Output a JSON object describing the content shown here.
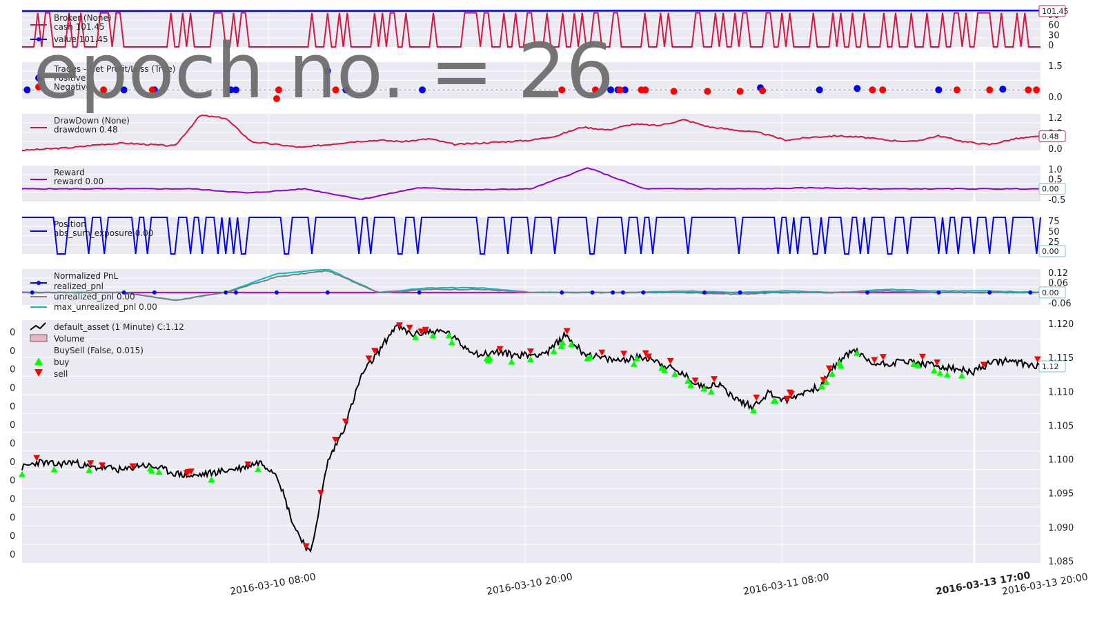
{
  "epoch_label": "epoch no. = 26",
  "colors": {
    "panel_bg": "#eaeaf2",
    "grid": "#ffffff",
    "cash": "#dc143c",
    "value": "#0000ff",
    "trade_positive": "#0000ff",
    "trade_negative": "#ff0000",
    "drawdown": "#dc143c",
    "reward": "#9400d3",
    "position": "#0000ff",
    "realized": "#0000ff",
    "unrealized": "#808080",
    "max_unrealized": "#00bfbf",
    "price": "#000000",
    "buy": "#00ff00",
    "sell": "#ff0000"
  },
  "x_axis": {
    "ticks": [
      "2016-03-10 08:00",
      "2016-03-10 20:00",
      "2016-03-11 08:00",
      "2016-03-13 17:00",
      "2016-03-13 20:00"
    ]
  },
  "chart_data": [
    {
      "type": "line",
      "id": "broker",
      "legend": [
        "Broker (None)",
        "cash 101.45",
        "value 101.45"
      ],
      "yticks": [
        "90",
        "60",
        "30",
        "0"
      ],
      "ylim": [
        0,
        100
      ],
      "last_value": "101.45",
      "series": [
        {
          "name": "cash",
          "values": [
            0,
            100,
            0,
            100,
            0,
            100,
            0,
            100,
            0,
            100,
            0
          ]
        },
        {
          "name": "value",
          "values": [
            100,
            100,
            100,
            100,
            101.45
          ]
        }
      ]
    },
    {
      "type": "scatter",
      "id": "trades",
      "legend": [
        "Trades - Net Profit/Loss (True)",
        "Positive",
        "Negative"
      ],
      "yticks": [
        "1.5",
        "0.0"
      ],
      "ylim": [
        -0.6,
        1.9
      ],
      "positive": [
        [
          0.005,
          0
        ],
        [
          0.1,
          0
        ],
        [
          0.13,
          0
        ],
        [
          0.205,
          0
        ],
        [
          0.21,
          0
        ],
        [
          0.3,
          1.3
        ],
        [
          0.318,
          0
        ],
        [
          0.393,
          0
        ],
        [
          0.578,
          0
        ],
        [
          0.585,
          0
        ],
        [
          0.592,
          0
        ],
        [
          0.725,
          0.15
        ],
        [
          0.783,
          0
        ],
        [
          0.82,
          0.1
        ],
        [
          0.9,
          0
        ],
        [
          0.963,
          0.05
        ]
      ],
      "negative": [
        [
          0.08,
          0
        ],
        [
          0.128,
          0
        ],
        [
          0.25,
          -0.6
        ],
        [
          0.252,
          0
        ],
        [
          0.308,
          0
        ],
        [
          0.53,
          0
        ],
        [
          0.563,
          0
        ],
        [
          0.587,
          0
        ],
        [
          0.608,
          0
        ],
        [
          0.612,
          0
        ],
        [
          0.64,
          -0.1
        ],
        [
          0.673,
          -0.1
        ],
        [
          0.705,
          -0.1
        ],
        [
          0.727,
          -0.05
        ],
        [
          0.835,
          0
        ],
        [
          0.845,
          0
        ],
        [
          0.918,
          0
        ],
        [
          0.95,
          0
        ],
        [
          0.988,
          0
        ],
        [
          0.996,
          0
        ]
      ]
    },
    {
      "type": "line",
      "id": "drawdown",
      "legend": [
        "DrawDown (None)",
        "drawdown 0.48"
      ],
      "yticks": [
        "1.2",
        "0.8",
        "0.0"
      ],
      "ylim": [
        0,
        1.25
      ],
      "last_value": "0.48",
      "series": [
        {
          "name": "drawdown",
          "values": [
            0.0,
            0.05,
            0.1,
            0.2,
            0.25,
            0.2,
            0.15,
            1.2,
            1.1,
            0.3,
            0.2,
            0.1,
            0.2,
            0.3,
            0.35,
            0.3,
            0.4,
            0.2,
            0.25,
            0.3,
            0.35,
            0.5,
            0.8,
            0.7,
            0.9,
            0.85,
            1.05,
            0.8,
            0.7,
            0.6,
            0.35,
            0.45,
            0.5,
            0.45,
            0.35,
            0.3,
            0.5,
            0.3,
            0.2,
            0.4,
            0.48
          ]
        }
      ]
    },
    {
      "type": "line",
      "id": "reward",
      "legend": [
        "Reward",
        "reward 0.00"
      ],
      "yticks": [
        "1.0",
        "0.5",
        "0.0",
        "-0.5"
      ],
      "ylim": [
        -0.6,
        1.1
      ],
      "last_value": "0.00",
      "series": [
        {
          "name": "reward",
          "values": [
            0,
            0,
            0,
            0,
            -0.2,
            0,
            -0.5,
            0.05,
            -0.05,
            0,
            1.0,
            0,
            0,
            0,
            0.05,
            0,
            0,
            0,
            0
          ]
        }
      ]
    },
    {
      "type": "line",
      "id": "position",
      "legend": [
        "Position",
        "abs_sum_exposure 0.00"
      ],
      "yticks": [
        "75",
        "50",
        "25",
        "0"
      ],
      "ylim": [
        0,
        100
      ],
      "last_value": "0.00",
      "series": [
        {
          "name": "abs_sum_exposure",
          "values": [
            0,
            100,
            0,
            100,
            0,
            100,
            0,
            100,
            0,
            100,
            0
          ]
        }
      ]
    },
    {
      "type": "line",
      "id": "pnl",
      "legend": [
        "Normalized PnL",
        "realized_pnl",
        "unrealized_pnl 0.00",
        "max_unrealized_pnl 0.00"
      ],
      "yticks": [
        "0.12",
        "0.06",
        "0",
        "-0.06"
      ],
      "ylim": [
        -0.08,
        0.15
      ],
      "last_value": "0.00",
      "series": [
        {
          "name": "unrealized_pnl",
          "values": [
            0,
            0,
            0,
            -0.05,
            0,
            0.1,
            0.14,
            0.0,
            0.02,
            0.02,
            0,
            0,
            0,
            0.0,
            -0.01,
            0,
            0,
            0.01,
            0,
            0,
            0
          ]
        },
        {
          "name": "max_unrealized_pnl",
          "values": [
            0,
            0,
            0,
            -0.05,
            0,
            0.12,
            0.15,
            0.0,
            0.03,
            0.03,
            0,
            0,
            0,
            0.01,
            0,
            0.01,
            0,
            0.02,
            0.01,
            0.01,
            0
          ]
        }
      ]
    },
    {
      "type": "line",
      "id": "price",
      "legend": [
        "default_asset (1 Minute) C:1.12",
        "Volume",
        "BuySell (False, 0.015)",
        "buy",
        "sell"
      ],
      "yticks": [
        "1.120",
        "1.115",
        "1.110",
        "1.105",
        "1.100",
        "1.095",
        "1.090",
        "1.085"
      ],
      "left_ticks": [
        "0",
        "0",
        "0",
        "0",
        "0",
        "0",
        "0",
        "0",
        "0",
        "0",
        "0",
        "0",
        "0"
      ],
      "ylim": [
        1.0815,
        1.1235
      ],
      "last_value": "1.12",
      "series": [
        {
          "name": "default_asset",
          "values": [
            1.098,
            1.099,
            1.0985,
            1.099,
            1.098,
            1.098,
            1.0975,
            1.0985,
            1.098,
            1.097,
            1.0965,
            1.097,
            1.0975,
            1.098,
            1.099,
            1.097,
            1.088,
            1.083,
            1.099,
            1.105,
            1.114,
            1.118,
            1.1225,
            1.121,
            1.1215,
            1.1215,
            1.119,
            1.1175,
            1.118,
            1.1175,
            1.1175,
            1.118,
            1.121,
            1.118,
            1.117,
            1.1165,
            1.117,
            1.117,
            1.1155,
            1.114,
            1.112,
            1.1125,
            1.11,
            1.1085,
            1.111,
            1.1095,
            1.111,
            1.112,
            1.116,
            1.1185,
            1.116,
            1.116,
            1.1165,
            1.116,
            1.1155,
            1.115,
            1.1145,
            1.116,
            1.1165,
            1.116,
            1.1155
          ]
        }
      ]
    }
  ]
}
